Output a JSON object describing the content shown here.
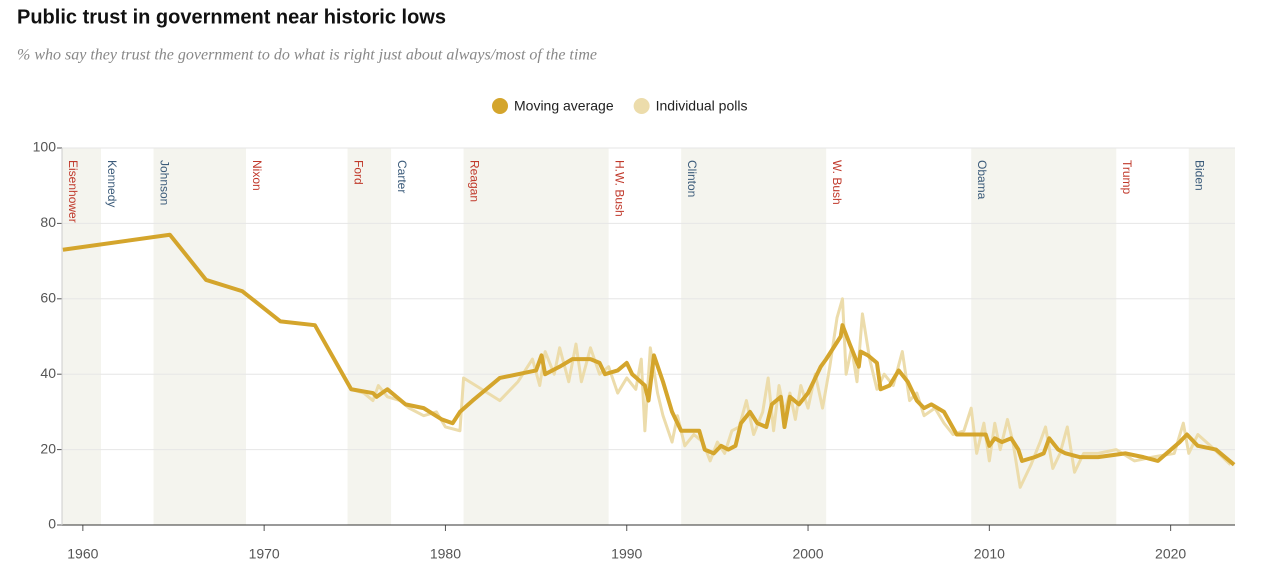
{
  "chart_data": {
    "type": "line",
    "title": "Public trust in government near historic lows",
    "subtitle": "% who say they trust the government to do what is right just about always/most of the time",
    "xlim": [
      1958.85,
      2023.55
    ],
    "xticks": [
      1960,
      1970,
      1980,
      1990,
      2000,
      2010,
      2020
    ],
    "ylim": [
      0,
      100
    ],
    "yticks": [
      0,
      20,
      40,
      60,
      80,
      100
    ],
    "grid": true,
    "legend": "top",
    "presidents": [
      {
        "name": "Eisenhower",
        "start": 1958.85,
        "color": "#c0392b"
      },
      {
        "name": "Kennedy",
        "start": 1961,
        "color": "#3b5b7a"
      },
      {
        "name": "Johnson",
        "start": 1963.9,
        "color": "#3b5b7a"
      },
      {
        "name": "Nixon",
        "start": 1969,
        "color": "#c0392b"
      },
      {
        "name": "Ford",
        "start": 1974.6,
        "color": "#c0392b"
      },
      {
        "name": "Carter",
        "start": 1977,
        "color": "#3b5b7a"
      },
      {
        "name": "Reagan",
        "start": 1981,
        "color": "#c0392b"
      },
      {
        "name": "H.W. Bush",
        "start": 1989,
        "color": "#c0392b"
      },
      {
        "name": "Clinton",
        "start": 1993,
        "color": "#3b5b7a"
      },
      {
        "name": "W. Bush",
        "start": 2001,
        "color": "#c0392b"
      },
      {
        "name": "Obama",
        "start": 2009,
        "color": "#3b5b7a"
      },
      {
        "name": "Trump",
        "start": 2017,
        "color": "#c0392b"
      },
      {
        "name": "Biden",
        "start": 2021,
        "color": "#3b5b7a"
      }
    ],
    "series": [
      {
        "name": "Individual polls",
        "color": "#ecdcab",
        "width": 3,
        "x": [
          1974.8,
          1975.5,
          1976,
          1976.3,
          1976.8,
          1977.5,
          1978,
          1978.8,
          1979.5,
          1980,
          1980.8,
          1981,
          1982,
          1983,
          1984,
          1984.8,
          1985.2,
          1985.5,
          1986,
          1986.3,
          1986.8,
          1987.2,
          1987.5,
          1988,
          1988.5,
          1989,
          1989.5,
          1990,
          1990.5,
          1990.8,
          1991,
          1991.3,
          1991.7,
          1992,
          1992.5,
          1992.8,
          1993.2,
          1993.7,
          1994.2,
          1994.6,
          1995,
          1995.4,
          1995.8,
          1996.2,
          1996.6,
          1997,
          1997.5,
          1997.8,
          1998.1,
          1998.4,
          1998.7,
          1999,
          1999.3,
          1999.6,
          2000,
          2000.4,
          2000.8,
          2001.2,
          2001.6,
          2001.9,
          2002.1,
          2002.4,
          2002.7,
          2003,
          2003.4,
          2003.8,
          2004.2,
          2004.7,
          2005.2,
          2005.6,
          2006,
          2006.4,
          2007,
          2007.5,
          2008,
          2008.6,
          2009,
          2009.3,
          2009.7,
          2010,
          2010.3,
          2010.6,
          2011,
          2011.3,
          2011.7,
          2012,
          2012.3,
          2012.8,
          2013.1,
          2013.5,
          2013.9,
          2014.3,
          2014.7,
          2015.2,
          2016,
          2017,
          2018,
          2019,
          2020.2,
          2020.7,
          2021,
          2021.5,
          2022.2,
          2023.3
        ],
        "values": [
          36,
          35,
          33,
          37,
          34,
          33,
          31,
          29,
          30,
          26,
          25,
          39,
          36,
          33,
          38,
          44,
          37,
          46,
          40,
          47,
          38,
          48,
          38,
          47,
          40,
          42,
          35,
          39,
          36,
          44,
          25,
          47,
          35,
          29,
          22,
          29,
          21,
          24,
          22,
          17,
          22,
          19,
          25,
          26,
          33,
          24,
          30,
          39,
          25,
          37,
          30,
          35,
          28,
          37,
          31,
          40,
          31,
          42,
          55,
          60,
          40,
          47,
          38,
          56,
          44,
          36,
          40,
          37,
          46,
          33,
          35,
          29,
          31,
          27,
          24,
          25,
          31,
          19,
          27,
          17,
          27,
          20,
          28,
          22,
          10,
          13,
          16,
          22,
          26,
          15,
          19,
          26,
          14,
          19,
          19,
          20,
          17,
          18,
          19,
          27,
          19,
          24,
          21,
          16
        ]
      },
      {
        "name": "Moving average",
        "color": "#d4a52c",
        "width": 4,
        "x": [
          1958.9,
          1964.8,
          1966.8,
          1968.8,
          1970.9,
          1972.8,
          1974.8,
          1976,
          1976.2,
          1976.8,
          1977.8,
          1978.8,
          1979.8,
          1980.4,
          1980.8,
          1981.5,
          1983,
          1985,
          1985.3,
          1985.5,
          1986.3,
          1987,
          1988,
          1988.5,
          1988.8,
          1989.5,
          1990,
          1990.3,
          1991,
          1991.2,
          1991.5,
          1992,
          1992.5,
          1993,
          1994,
          1994.3,
          1994.8,
          1995.2,
          1995.6,
          1996,
          1996.3,
          1996.8,
          1997.2,
          1997.7,
          1998,
          1998.5,
          1998.7,
          1999,
          1999.5,
          2000,
          2000.3,
          2000.7,
          2001,
          2001.8,
          2001.9,
          2002.3,
          2002.8,
          2002.9,
          2003.3,
          2003.8,
          2004,
          2004.5,
          2005,
          2005.5,
          2006,
          2006.4,
          2006.8,
          2007.5,
          2008.2,
          2009,
          2009.8,
          2010,
          2010.3,
          2010.7,
          2011.2,
          2011.6,
          2011.8,
          2012.5,
          2013,
          2013.3,
          2013.8,
          2014.2,
          2015,
          2016,
          2017.5,
          2018.5,
          2019.3,
          2020.5,
          2020.9,
          2021.5,
          2022.5,
          2023.5
        ],
        "values": [
          73,
          77,
          65,
          62,
          54,
          53,
          36,
          35,
          34,
          36,
          32,
          31,
          28,
          27,
          30,
          33,
          39,
          41,
          45,
          40,
          42,
          44,
          44,
          43,
          40,
          41,
          43,
          40,
          37,
          33,
          45,
          38,
          30,
          25,
          25,
          20,
          19,
          21,
          20,
          21,
          27,
          30,
          27,
          26,
          32,
          34,
          26,
          34,
          32,
          35,
          38,
          42,
          44,
          50,
          53,
          48,
          42,
          46,
          45,
          43,
          36,
          37,
          41,
          38,
          33,
          31,
          32,
          30,
          24,
          24,
          24,
          21,
          23,
          22,
          23,
          20,
          17,
          18,
          19,
          23,
          20,
          19,
          18,
          18,
          19,
          18,
          17,
          22,
          24,
          21,
          20,
          16
        ]
      }
    ]
  }
}
